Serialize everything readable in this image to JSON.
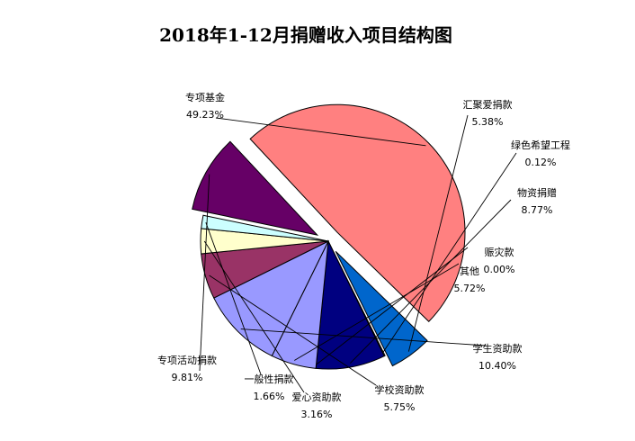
{
  "chart_data": {
    "type": "pie",
    "title": "2018年1-12月捐赠收入项目结构图",
    "slices": [
      {
        "name": "专项基金",
        "pct_label": "49.23%",
        "value": 49.23,
        "color": "#ff8080",
        "exploded": true
      },
      {
        "name": "汇聚爱捐款",
        "pct_label": "5.38%",
        "value": 5.38,
        "color": "#0066cc",
        "exploded": true
      },
      {
        "name": "绿色希望工程",
        "pct_label": "0.12%",
        "value": 0.12,
        "color": "#cfe0f5",
        "exploded": false
      },
      {
        "name": "物资捐赠",
        "pct_label": "8.77%",
        "value": 8.77,
        "color": "#000080",
        "exploded": false
      },
      {
        "name": "赈灾款",
        "pct_label": "0.00%",
        "value": 0.0,
        "color": "#ff00ff",
        "exploded": false
      },
      {
        "name": "其他",
        "pct_label": "5.72%",
        "value": 5.72,
        "color": "#9999ff",
        "exploded": false
      },
      {
        "name": "学生资助款",
        "pct_label": "10.40%",
        "value": 10.4,
        "color": "#9999ff",
        "exploded": false
      },
      {
        "name": "学校资助款",
        "pct_label": "5.75%",
        "value": 5.75,
        "color": "#993366",
        "exploded": false
      },
      {
        "name": "爱心资助款",
        "pct_label": "3.16%",
        "value": 3.16,
        "color": "#ffffcc",
        "exploded": false
      },
      {
        "name": "一般性捐款",
        "pct_label": "1.66%",
        "value": 1.66,
        "color": "#ccffff",
        "exploded": false
      },
      {
        "name": "专项活动捐款",
        "pct_label": "9.81%",
        "value": 9.81,
        "color": "#660066",
        "exploded": true
      }
    ]
  }
}
